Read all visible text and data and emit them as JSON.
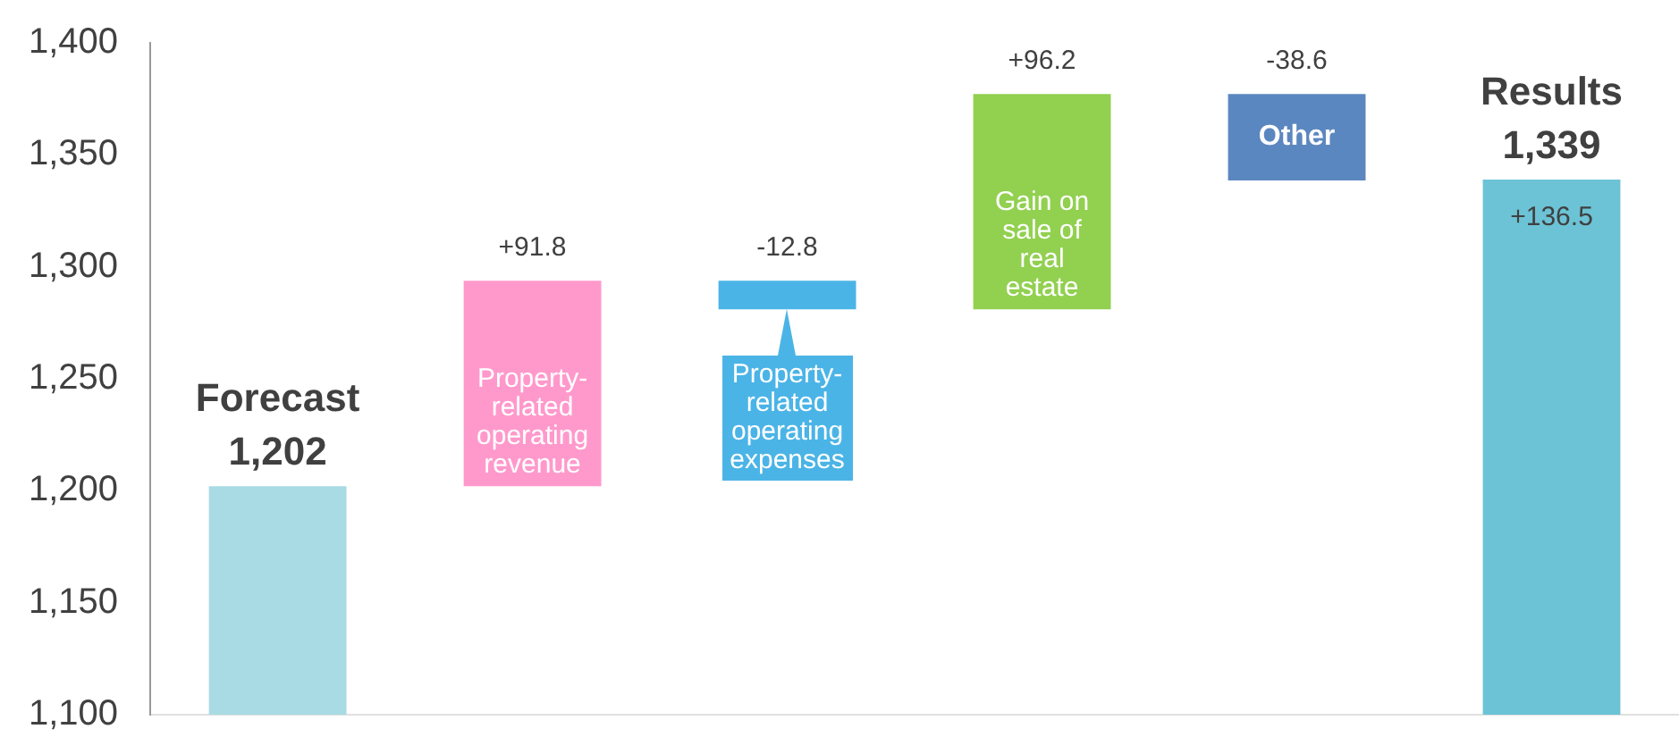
{
  "chart_data": {
    "type": "bar",
    "categories": [
      "Forecast",
      "Property-related operating revenue",
      "Property-related operating expenses",
      "Gain on sale of real estate",
      "Other",
      "Results"
    ],
    "values": [
      1202,
      91.8,
      -12.8,
      96.2,
      -38.6,
      1339
    ],
    "base": [
      null,
      1202,
      1293.8,
      1281,
      1377.2,
      null
    ],
    "colors": [
      "#a8dbe4",
      "#ff99cc",
      "#4bb4e6",
      "#92d050",
      "#5b87c0",
      "#6cc3d5"
    ],
    "value_labels": [
      "1,202",
      "+91.8",
      "-12.8",
      "+96.2",
      "-38.6",
      "1,339"
    ],
    "annotations": [
      {
        "text": "+136.5",
        "x": "Results",
        "y": 1339
      }
    ],
    "ylim": [
      1100,
      1400
    ],
    "yticks": [
      {
        "value": 1100,
        "label": "1,100"
      },
      {
        "value": 1150,
        "label": "1,150"
      },
      {
        "value": 1200,
        "label": "1,200"
      },
      {
        "value": 1250,
        "label": "1,250"
      },
      {
        "value": 1300,
        "label": "1,300"
      },
      {
        "value": 1350,
        "label": "1,350"
      },
      {
        "value": 1400,
        "label": "1,400"
      }
    ],
    "grid": false,
    "legend": false
  }
}
